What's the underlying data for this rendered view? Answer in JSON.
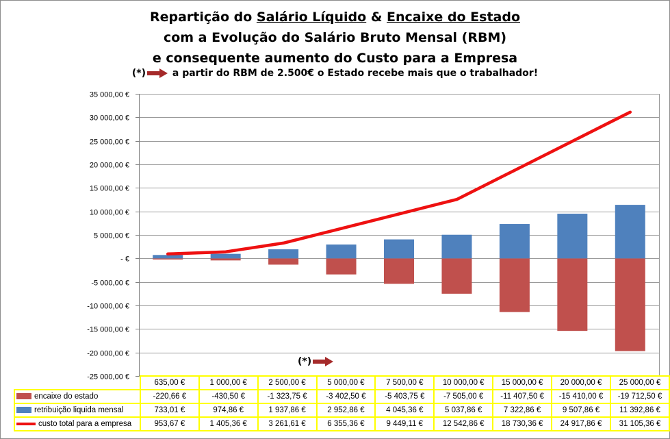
{
  "title": {
    "line1_a": "Repartição do ",
    "line1_u1": "Salário Líquido",
    "line1_b": " & ",
    "line1_u2": "Encaixe do Estado",
    "line2": "com a Evolução do Salário Bruto Mensal (RBM)",
    "line3": "e consequente aumento do Custo para a Empresa",
    "note_marker": "(*)",
    "note_text": " a partir do RBM de 2.500€ o Estado recebe mais que o trabalhador!"
  },
  "annotation": {
    "marker": "(*)"
  },
  "colors": {
    "encaixe": "#c0504d",
    "retribuicao": "#4f81bd",
    "custo": "#ee1111",
    "arrow": "#a52a2a",
    "table_border": "#ffff00"
  },
  "chart_data": {
    "type": "bar",
    "categories": [
      "635,00 €",
      "1 000,00 €",
      "2 500,00 €",
      "5 000,00 €",
      "7 500,00 €",
      "10 000,00 €",
      "15 000,00 €",
      "20 000,00 €",
      "25 000,00 €"
    ],
    "ylim": [
      -25000,
      35000
    ],
    "ytick_step": 5000,
    "ytick_labels": [
      "35 000,00 €",
      "30 000,00 €",
      "25 000,00 €",
      "20 000,00 €",
      "15 000,00 €",
      "10 000,00 €",
      "5 000,00 €",
      "-  €",
      "-5 000,00 €",
      "-10 000,00 €",
      "-15 000,00 €",
      "-20 000,00 €",
      "-25 000,00 €"
    ],
    "grid": "horizontal",
    "legend": "data-table",
    "series": [
      {
        "name": "encaixe do estado",
        "kind": "bar",
        "values": [
          -220.66,
          -430.5,
          -1323.75,
          -3402.5,
          -5403.75,
          -7505.0,
          -11407.5,
          -15410.0,
          -19712.5
        ],
        "labels": [
          "-220,66 €",
          "-430,50 €",
          "-1 323,75 €",
          "-3 402,50 €",
          "-5 403,75 €",
          "-7 505,00 €",
          "-11 407,50 €",
          "-15 410,00 €",
          "-19 712,50 €"
        ]
      },
      {
        "name": "retribuição liquida mensal",
        "kind": "bar",
        "values": [
          733.01,
          974.86,
          1937.86,
          2952.86,
          4045.36,
          5037.86,
          7322.86,
          9507.86,
          11392.86
        ],
        "labels": [
          "733,01 €",
          "974,86 €",
          "1 937,86 €",
          "2 952,86 €",
          "4 045,36 €",
          "5 037,86 €",
          "7 322,86 €",
          "9 507,86 €",
          "11 392,86 €"
        ]
      },
      {
        "name": "custo total para a empresa",
        "kind": "line",
        "values": [
          953.67,
          1405.36,
          3261.61,
          6355.36,
          9449.11,
          12542.86,
          18730.36,
          24917.86,
          31105.36
        ],
        "labels": [
          "953,67 €",
          "1 405,36 €",
          "3 261,61 €",
          "6 355,36 €",
          "9 449,11 €",
          "12 542,86 €",
          "18 730,36 €",
          "24 917,86 €",
          "31 105,36 €"
        ]
      }
    ]
  }
}
